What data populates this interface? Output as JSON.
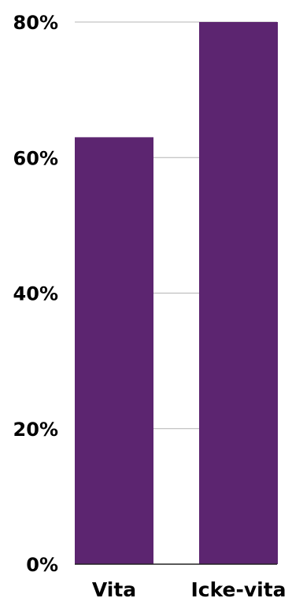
{
  "colors": {
    "bar": "#5c2570",
    "grid": "#b4b4b4",
    "axis": "#222222",
    "text": "#000000"
  },
  "chart_data": {
    "type": "bar",
    "title": "",
    "xlabel": "",
    "ylabel": "",
    "categories": [
      "Vita",
      "Icke-vita"
    ],
    "values": [
      63,
      80
    ],
    "ylim": [
      0,
      80
    ],
    "yticks": [
      0,
      20,
      40,
      60,
      80
    ],
    "ytick_labels": [
      "0%",
      "20%",
      "40%",
      "60%",
      "80%"
    ],
    "grid": true,
    "legend": "none"
  }
}
